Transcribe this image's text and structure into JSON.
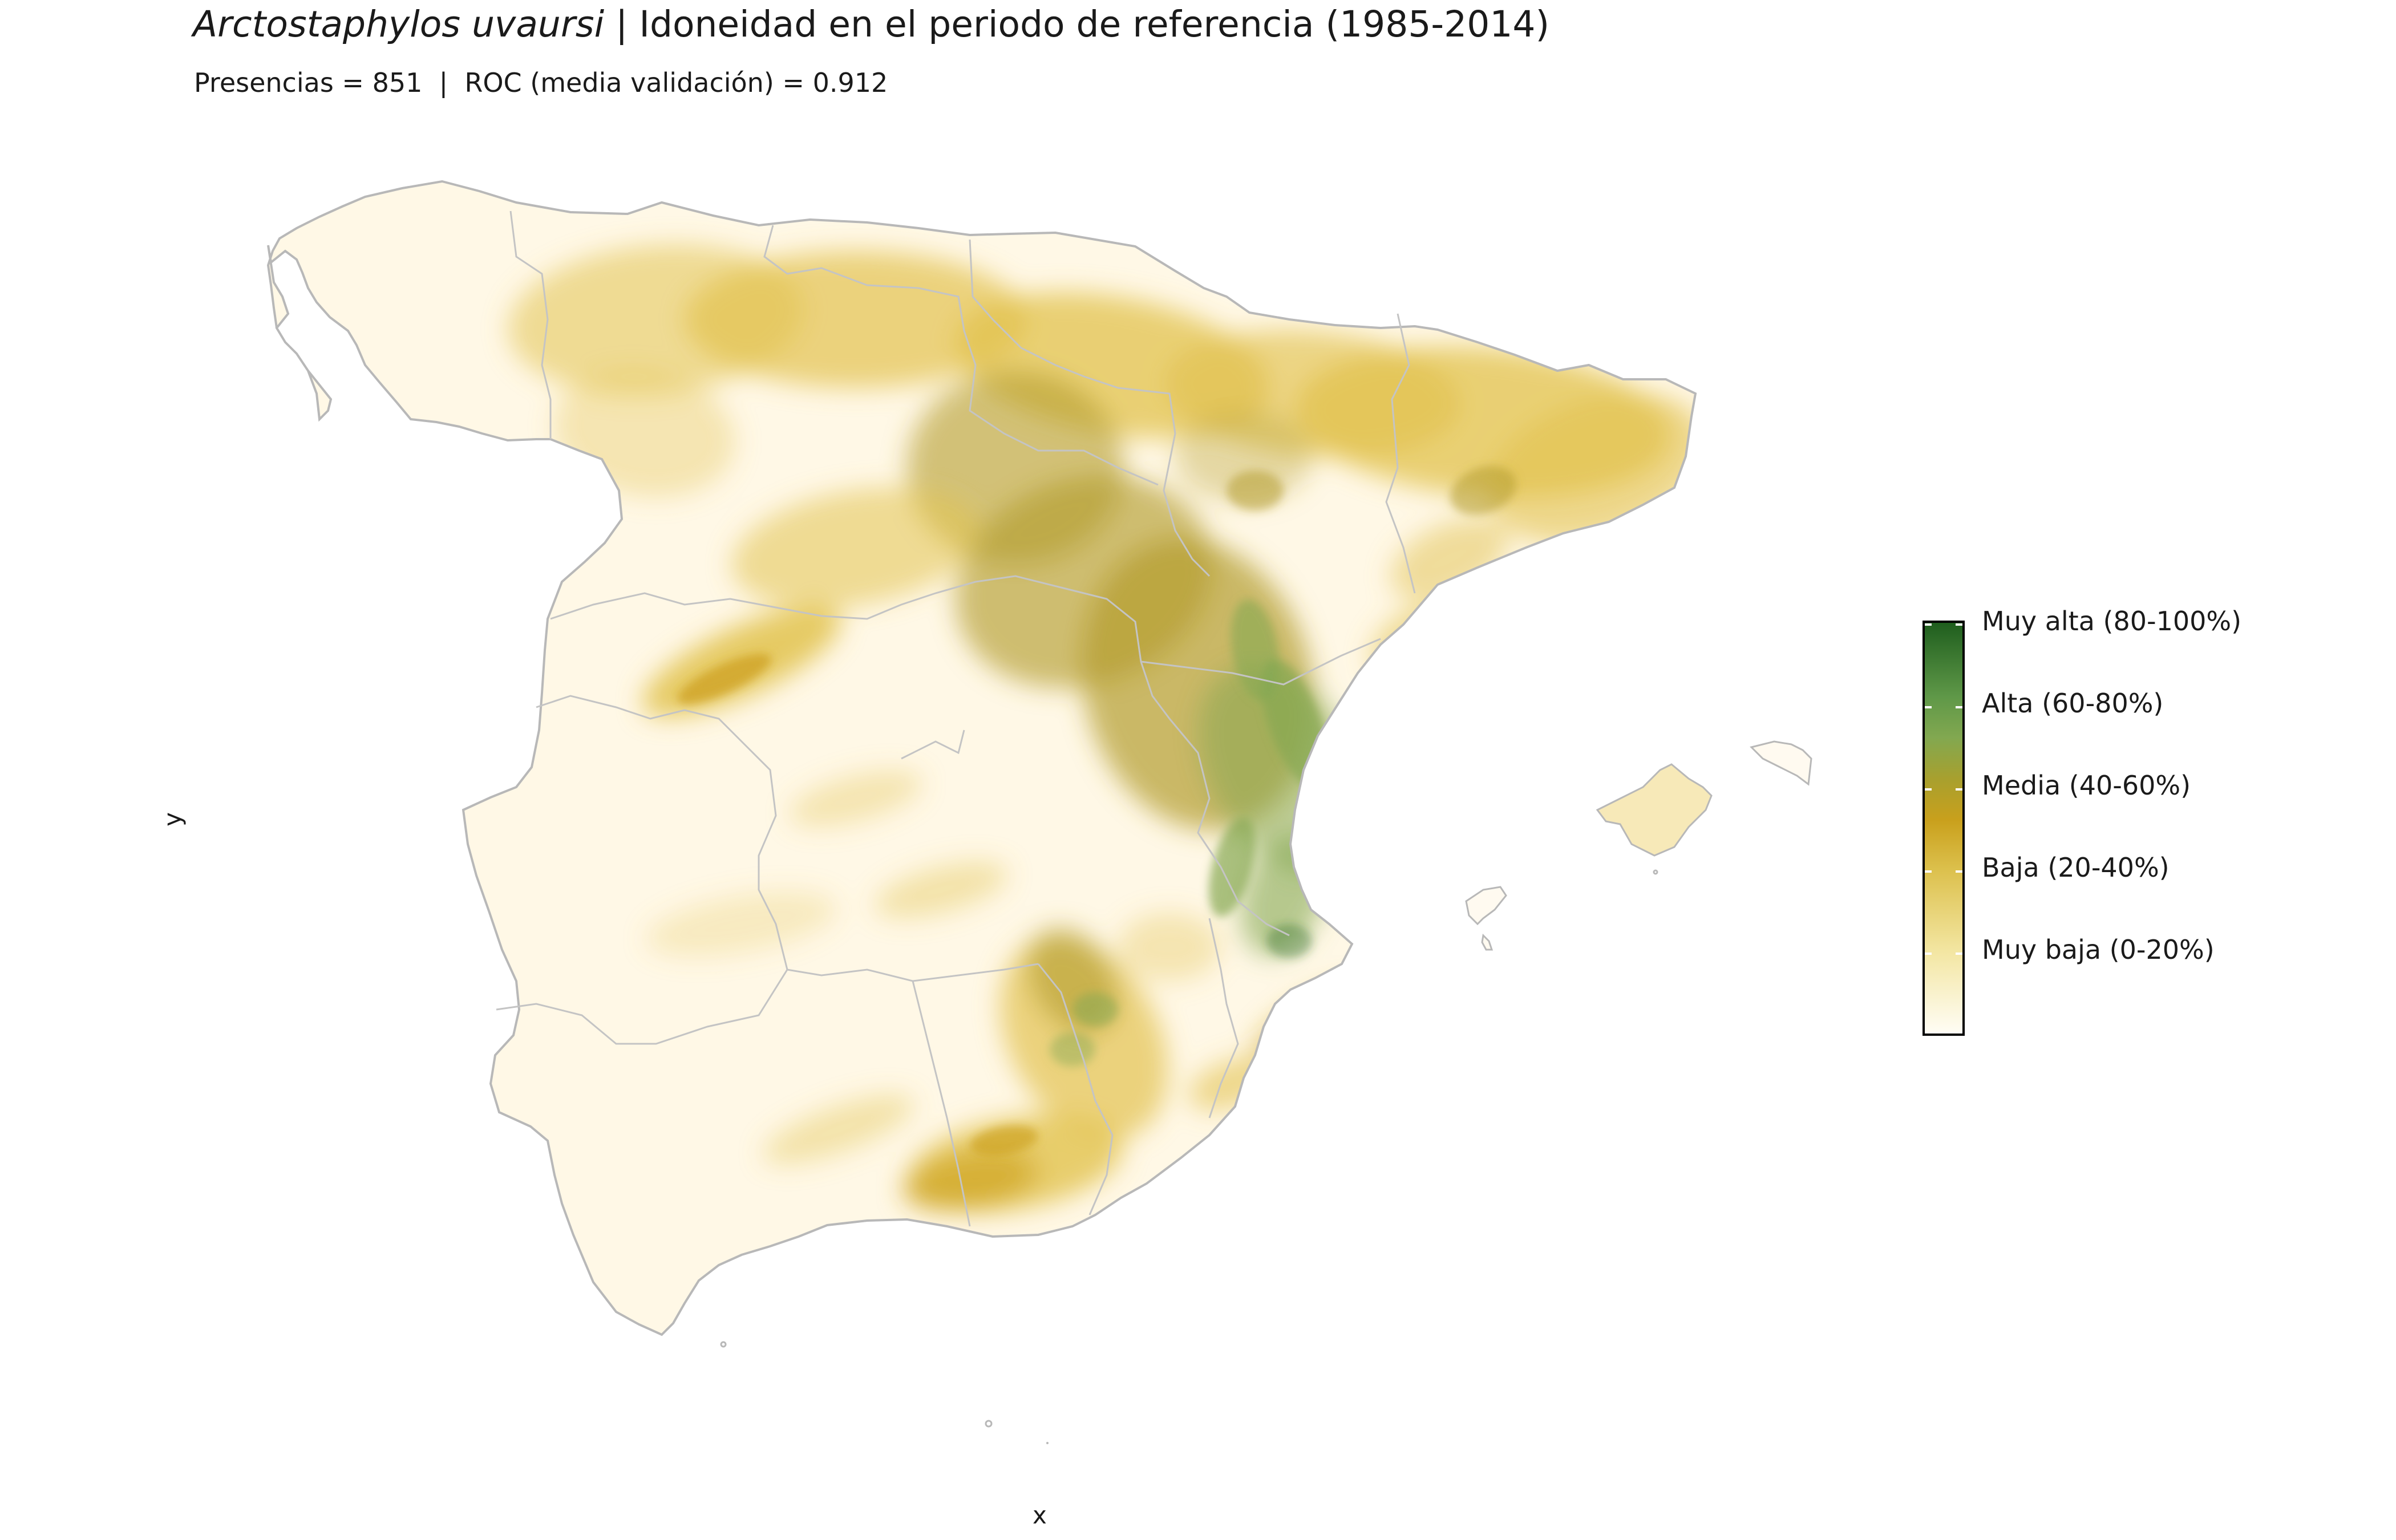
{
  "title": {
    "species": "Arctostaphylos uvaursi",
    "rest": " | Idoneidad en el periodo de referencia (1985-2014)"
  },
  "subtitle": "Presencias = 851  |  ROC (media validación) = 0.912",
  "axes": {
    "x_label": "x",
    "y_label": "y"
  },
  "legend": {
    "items": [
      "Muy alta (80-100%)",
      "Alta (60-80%)",
      "Media (40-60%)",
      "Baja (20-40%)",
      "Muy baja (0-20%)"
    ]
  },
  "map": {
    "region": "Spain (peninsula + Balearic Islands)",
    "colors": {
      "muy_baja": "#fff8e6",
      "baja": "#e2c24e",
      "baja_media": "#cfa424",
      "media": "#b49d2e",
      "alta": "#86a853",
      "muy_alta": "#2f6e25",
      "border": "#b8b8b8"
    }
  }
}
